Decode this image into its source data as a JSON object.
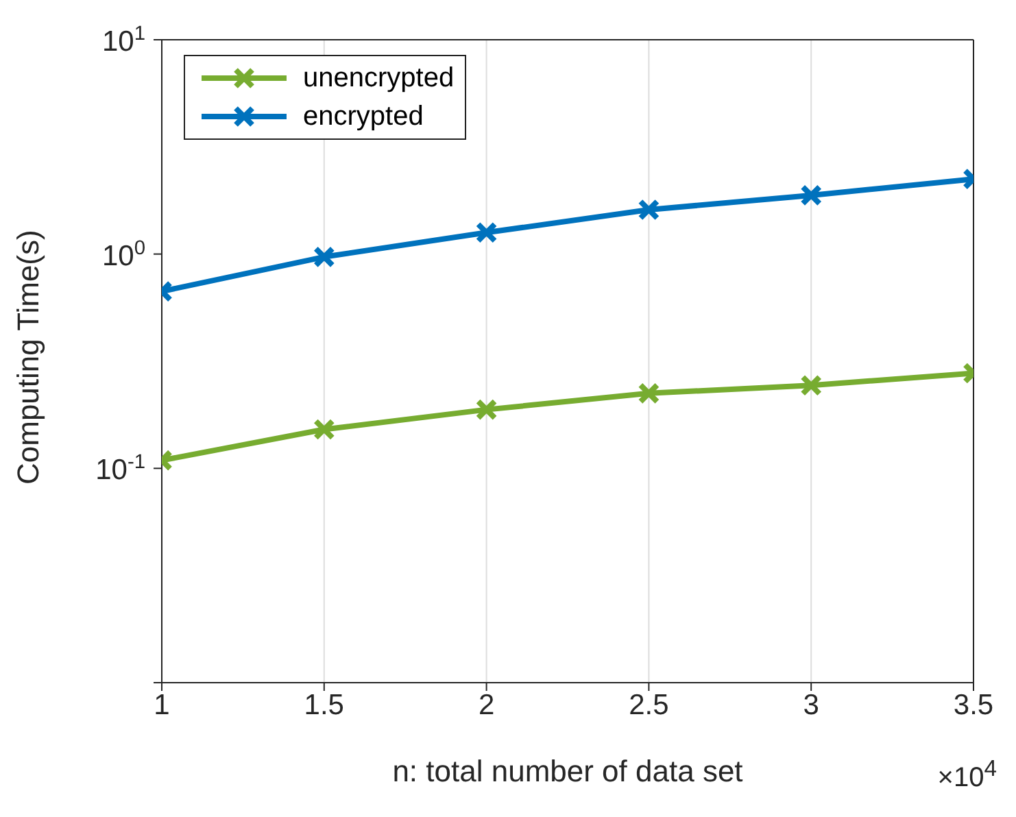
{
  "chart_data": {
    "type": "line",
    "xlabel": "n: total number of data set",
    "ylabel": "Computing Time(s)",
    "annotations": [
      "×10$^{4}$"
    ],
    "x": [
      1,
      1.5,
      2,
      2.5,
      3,
      3.5
    ],
    "series": [
      {
        "name": "unencrypted",
        "color": "#77ac30",
        "values": [
          0.109,
          0.152,
          0.188,
          0.224,
          0.244,
          0.278
        ]
      },
      {
        "name": "encrypted",
        "color": "#0072bd",
        "values": [
          0.67,
          0.97,
          1.26,
          1.61,
          1.88,
          2.24
        ]
      }
    ],
    "xlim": [
      1,
      3.5
    ],
    "xticks": [
      1,
      1.5,
      2,
      2.5,
      3,
      3.5
    ],
    "ylim": [
      0.01,
      10
    ],
    "yticks": [
      {
        "value": 0.01,
        "label": null
      },
      {
        "value": 0.1,
        "label": "10$^{-1}$"
      },
      {
        "value": 1,
        "label": "10$^{0}$"
      },
      {
        "value": 10,
        "label": "10$^{1}$"
      }
    ],
    "log": "y",
    "grid": "x",
    "legend": "top left",
    "marker": "cross",
    "line_style": "solid"
  }
}
